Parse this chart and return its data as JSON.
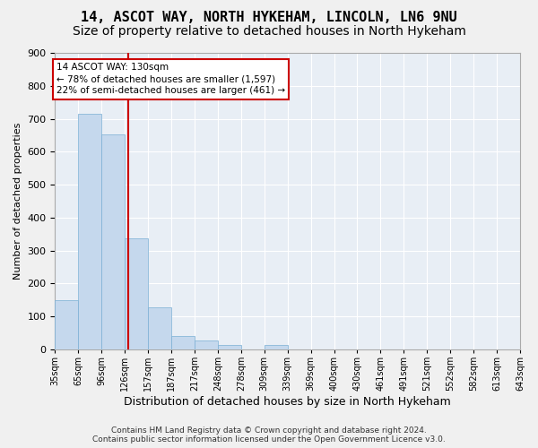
{
  "title_line1": "14, ASCOT WAY, NORTH HYKEHAM, LINCOLN, LN6 9NU",
  "title_line2": "Size of property relative to detached houses in North Hykeham",
  "xlabel": "Distribution of detached houses by size in North Hykeham",
  "ylabel": "Number of detached properties",
  "footer_line1": "Contains HM Land Registry data © Crown copyright and database right 2024.",
  "footer_line2": "Contains public sector information licensed under the Open Government Licence v3.0.",
  "bin_labels": [
    "35sqm",
    "65sqm",
    "96sqm",
    "126sqm",
    "157sqm",
    "187sqm",
    "217sqm",
    "248sqm",
    "278sqm",
    "309sqm",
    "339sqm",
    "369sqm",
    "400sqm",
    "430sqm",
    "461sqm",
    "491sqm",
    "521sqm",
    "552sqm",
    "582sqm",
    "613sqm",
    "643sqm"
  ],
  "bar_values": [
    150,
    715,
    653,
    338,
    128,
    40,
    28,
    13,
    0,
    13,
    0,
    0,
    0,
    0,
    0,
    0,
    0,
    0,
    0,
    0
  ],
  "bar_color": "#c5d8ed",
  "bar_edge_color": "#7aafd4",
  "property_bin_index": 3,
  "property_label": "14 ASCOT WAY: 130sqm",
  "annotation_line1": "14 ASCOT WAY: 130sqm",
  "annotation_line2": "← 78% of detached houses are smaller (1,597)",
  "annotation_line3": "22% of semi-detached houses are larger (461) →",
  "annotation_box_color": "#ffffff",
  "annotation_box_edge_color": "#cc0000",
  "property_line_color": "#cc0000",
  "ylim": [
    0,
    900
  ],
  "yticks": [
    0,
    100,
    200,
    300,
    400,
    500,
    600,
    700,
    800,
    900
  ],
  "background_color": "#e8eef5",
  "fig_background_color": "#f0f0f0",
  "grid_color": "#ffffff",
  "title_fontsize": 11,
  "subtitle_fontsize": 10,
  "axis_label_fontsize": 9,
  "tick_fontsize": 7,
  "ylabel_fontsize": 8,
  "footer_fontsize": 6.5
}
